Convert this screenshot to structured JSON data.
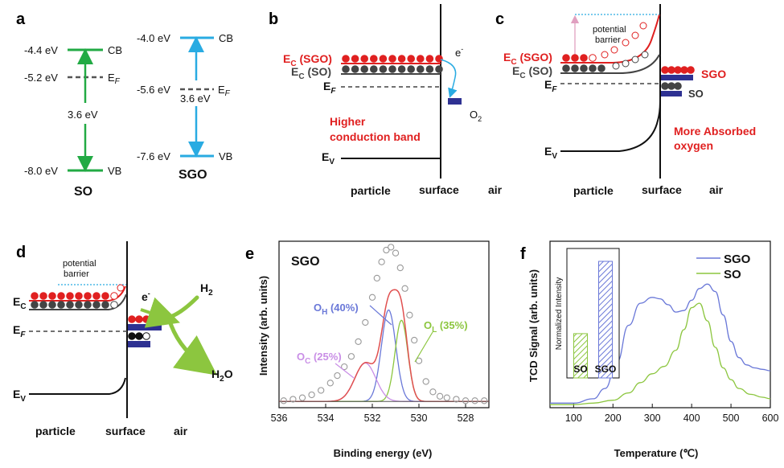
{
  "panels": {
    "a": {
      "label": "a",
      "so": {
        "name": "SO",
        "cb_value": "-4.4 eV",
        "cb_label": "CB",
        "ef_value": "-5.2 eV",
        "ef_label": "E",
        "ef_sub": "F",
        "gap": "3.6 eV",
        "vb_value": "-8.0 eV",
        "vb_label": "VB"
      },
      "sgo": {
        "name": "SGO",
        "cb_value": "-4.0 eV",
        "cb_label": "CB",
        "ef_value": "-5.6 eV",
        "ef_label": "E",
        "ef_sub": "F",
        "gap": "3.6 eV",
        "vb_value": "-7.6 eV",
        "vb_label": "VB"
      },
      "colors": {
        "so": "#22aa44",
        "sgo": "#29abe2",
        "ef": "#555555"
      }
    },
    "b": {
      "label": "b",
      "ec_sgo": "E",
      "ec_sgo_sub": "C",
      "ec_sgo_tag": " (SGO)",
      "ec_so": "E",
      "ec_so_sub": "C",
      "ec_so_tag": " (SO)",
      "ef": "E",
      "ef_sub": "F",
      "ev": "E",
      "ev_sub": "V",
      "electron": "e",
      "electron_sup": "-",
      "o2": "O",
      "o2_sub": "2",
      "note_line1": "Higher",
      "note_line2": "conduction band",
      "x_particle": "particle",
      "x_surface": "surface",
      "x_air": "air"
    },
    "c": {
      "label": "c",
      "barrier_line1": "potential",
      "barrier_line2": "barrier",
      "ec_sgo": "E",
      "ec_sgo_sub": "C",
      "ec_sgo_tag": " (SGO)",
      "ec_so": "E",
      "ec_so_sub": "C",
      "ec_so_tag": " (SO)",
      "ef": "E",
      "ef_sub": "F",
      "ev": "E",
      "ev_sub": "V",
      "sgo_tag": "SGO",
      "so_tag": "SO",
      "note_line1": "More Absorbed",
      "note_line2": "oxygen",
      "x_particle": "particle",
      "x_surface": "surface",
      "x_air": "air"
    },
    "d": {
      "label": "d",
      "barrier_line1": "potential",
      "barrier_line2": "barrier",
      "ec": "E",
      "ec_sub": "C",
      "ef": "E",
      "ef_sub": "F",
      "ev": "E",
      "ev_sub": "V",
      "electron": "e",
      "electron_sup": "-",
      "h2": "H",
      "h2_sub": "2",
      "h2o": "H",
      "h2o_sub": "2",
      "h2o_tail": "O",
      "x_particle": "particle",
      "x_surface": "surface",
      "x_air": "air"
    },
    "e": {
      "label": "e",
      "sample": "SGO",
      "oh_label": "O",
      "oh_sub": "H",
      "oh_pct": " (40%)",
      "ol_label": "O",
      "ol_sub": "L",
      "ol_pct": " (35%)",
      "oc_label": "O",
      "oc_sub": "C",
      "oc_pct": " (25%)"
    },
    "f": {
      "label": "f",
      "inset_ylabel": "Normalized Intensity"
    }
  },
  "chart_data": [
    {
      "type": "line",
      "panel": "e",
      "title": "SGO",
      "xlabel": "Binding energy (eV)",
      "ylabel": "Intensity (arb. units)",
      "xlim": [
        536,
        527
      ],
      "ylim": [
        0,
        1.1
      ],
      "xticks": [
        536,
        534,
        532,
        530,
        528
      ],
      "series": [
        {
          "name": "O_H (40%)",
          "color": "#6a78d8",
          "center": 531.3,
          "height": 0.62,
          "width": 0.62
        },
        {
          "name": "O_L (35%)",
          "color": "#8cc63f",
          "center": 530.75,
          "height": 0.55,
          "width": 0.55
        },
        {
          "name": "O_C (25%)",
          "color": "#c98ee6",
          "center": 532.3,
          "height": 0.26,
          "width": 0.9
        },
        {
          "name": "Fit",
          "color": "#e05050",
          "type": "sum"
        },
        {
          "name": "Data",
          "color": "#999999",
          "type": "markers",
          "x": [
            535.8,
            535.4,
            535.0,
            534.6,
            534.2,
            533.8,
            533.5,
            533.2,
            532.9,
            532.6,
            532.3,
            532.0,
            531.8,
            531.6,
            531.4,
            531.2,
            531.0,
            530.8,
            530.6,
            530.4,
            530.2,
            530.0,
            529.7,
            529.4,
            529.1,
            528.8,
            528.4,
            528.0,
            527.6,
            527.2
          ],
          "y": [
            0.02,
            0.03,
            0.04,
            0.06,
            0.09,
            0.14,
            0.19,
            0.25,
            0.32,
            0.42,
            0.55,
            0.72,
            0.85,
            0.96,
            1.04,
            1.06,
            1.02,
            0.92,
            0.78,
            0.6,
            0.43,
            0.29,
            0.15,
            0.08,
            0.05,
            0.04,
            0.03,
            0.02,
            0.02,
            0.02
          ]
        }
      ]
    },
    {
      "type": "line",
      "panel": "f",
      "xlabel": "Temperature (℃)",
      "ylabel": "TCD Signal (arb. units)",
      "xlim": [
        40,
        600
      ],
      "ylim": [
        0,
        1.1
      ],
      "xticks": [
        100,
        200,
        300,
        400,
        500,
        600
      ],
      "series": [
        {
          "name": "SGO",
          "color": "#6a78d8",
          "x": [
            40,
            100,
            150,
            180,
            210,
            240,
            270,
            300,
            320,
            340,
            360,
            380,
            400,
            420,
            440,
            460,
            480,
            500,
            520,
            540,
            560,
            580,
            600
          ],
          "y": [
            0.02,
            0.02,
            0.05,
            0.12,
            0.3,
            0.55,
            0.7,
            0.74,
            0.73,
            0.69,
            0.64,
            0.65,
            0.72,
            0.8,
            0.83,
            0.78,
            0.62,
            0.44,
            0.33,
            0.28,
            0.26,
            0.25,
            0.24
          ]
        },
        {
          "name": "SO",
          "color": "#8cc63f",
          "x": [
            40,
            100,
            150,
            200,
            240,
            270,
            300,
            330,
            360,
            380,
            400,
            420,
            440,
            460,
            480,
            500,
            520,
            550,
            580,
            600
          ],
          "y": [
            0.01,
            0.01,
            0.02,
            0.04,
            0.09,
            0.16,
            0.22,
            0.27,
            0.38,
            0.52,
            0.67,
            0.7,
            0.58,
            0.4,
            0.26,
            0.18,
            0.12,
            0.08,
            0.06,
            0.05
          ]
        }
      ],
      "legend": [
        "SGO",
        "SO"
      ],
      "inset": {
        "type": "bar",
        "categories": [
          "SO",
          "SGO"
        ],
        "values": [
          0.38,
          1.0
        ],
        "colors": [
          "#8cc63f",
          "#6a78d8"
        ],
        "ylabel": "Normalized Intensity"
      }
    }
  ]
}
